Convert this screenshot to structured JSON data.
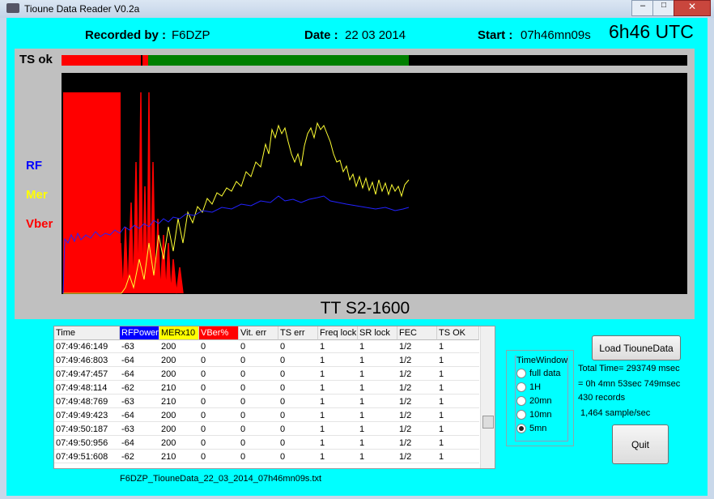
{
  "window": {
    "title": "Tioune Data Reader V0.2a"
  },
  "header": {
    "recorded_label": "Recorded by :",
    "recorded_value": "F6DZP",
    "date_label": "Date :",
    "date_value": "22 03 2014",
    "start_label": "Start :",
    "start_value": "07h46mn09s",
    "utc": "6h46 UTC"
  },
  "chart_panel": {
    "ts_label": "TS ok",
    "legend": [
      "RF",
      "Mer",
      "Vber"
    ],
    "title": "TT S2-1600"
  },
  "table": {
    "columns": [
      "Time",
      "RFPower",
      "MERx10",
      "VBer%",
      "Vit. err",
      "TS err",
      "Freq lock",
      "SR lock",
      "FEC",
      "TS OK"
    ],
    "rows": [
      [
        "07:49:46:149",
        "-63",
        "200",
        "0",
        "0",
        "0",
        "1",
        "1",
        "1/2",
        "1"
      ],
      [
        "07:49:46:803",
        "-64",
        "200",
        "0",
        "0",
        "0",
        "1",
        "1",
        "1/2",
        "1"
      ],
      [
        "07:49:47:457",
        "-64",
        "200",
        "0",
        "0",
        "0",
        "1",
        "1",
        "1/2",
        "1"
      ],
      [
        "07:49:48:114",
        "-62",
        "210",
        "0",
        "0",
        "0",
        "1",
        "1",
        "1/2",
        "1"
      ],
      [
        "07:49:48:769",
        "-63",
        "210",
        "0",
        "0",
        "0",
        "1",
        "1",
        "1/2",
        "1"
      ],
      [
        "07:49:49:423",
        "-64",
        "200",
        "0",
        "0",
        "0",
        "1",
        "1",
        "1/2",
        "1"
      ],
      [
        "07:49:50:187",
        "-63",
        "200",
        "0",
        "0",
        "0",
        "1",
        "1",
        "1/2",
        "1"
      ],
      [
        "07:49:50:956",
        "-64",
        "200",
        "0",
        "0",
        "0",
        "1",
        "1",
        "1/2",
        "1"
      ],
      [
        "07:49:51:608",
        "-62",
        "210",
        "0",
        "0",
        "0",
        "1",
        "1",
        "1/2",
        "1"
      ]
    ]
  },
  "filename": "F6DZP_TiouneData_22_03_2014_07h46mn09s.txt",
  "time_window": {
    "title": "TimeWindow",
    "options": [
      "full data",
      "1H",
      "20mn",
      "10mn",
      "5mn"
    ],
    "selected": "5mn"
  },
  "buttons": {
    "load": "Load TiouneData",
    "quit": "Quit"
  },
  "stats": [
    "Total Time= 293749 msec",
    "= 0h 4mn 53sec 749msec",
    "430 records",
    " 1,464 sample/sec"
  ]
}
